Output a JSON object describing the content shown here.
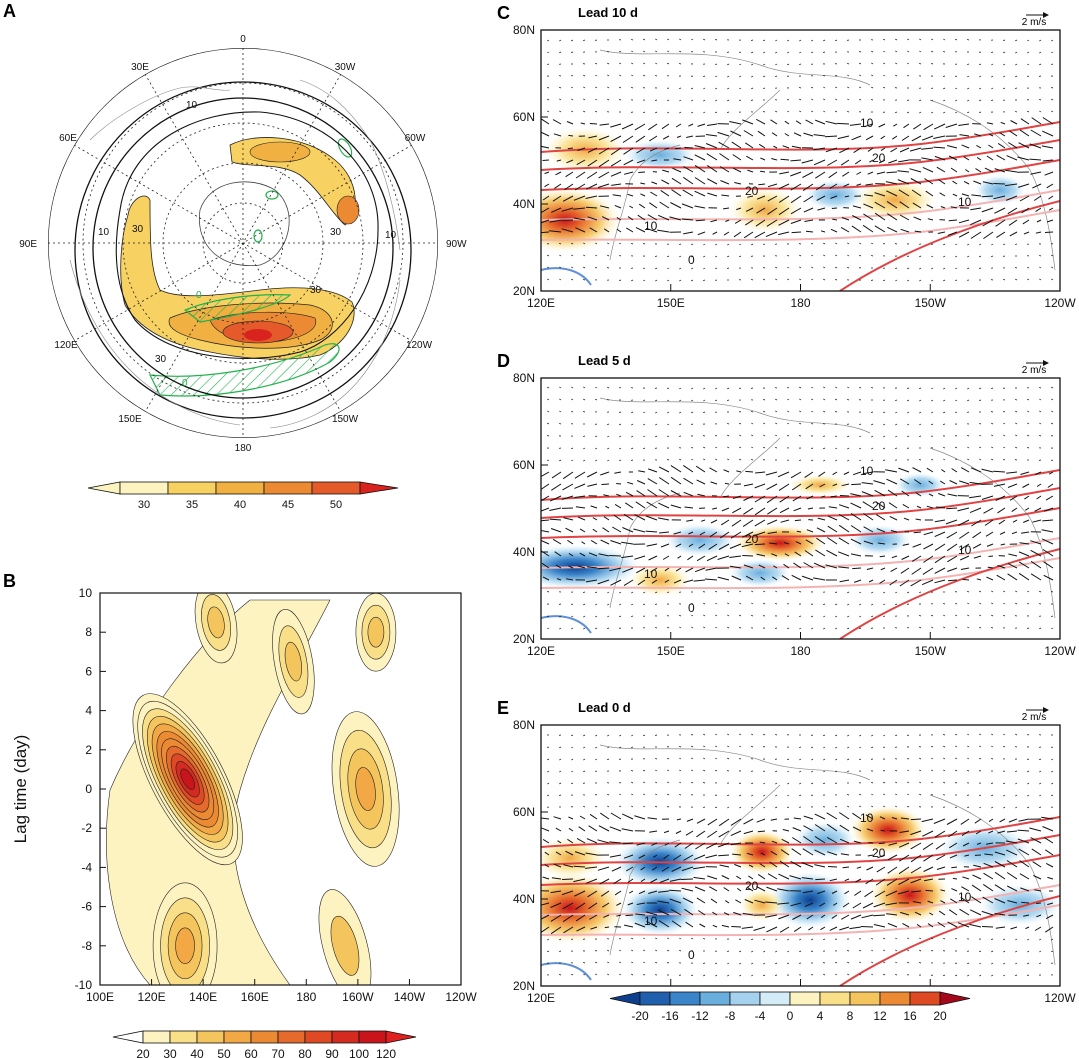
{
  "panels": {
    "A": {
      "label": "A"
    },
    "B": {
      "label": "B"
    },
    "C": {
      "label": "C",
      "title": "Lead 10 d",
      "ref_vector": "2 m/s"
    },
    "D": {
      "label": "D",
      "title": "Lead 5 d",
      "ref_vector": "2 m/s"
    },
    "E": {
      "label": "E",
      "title": "Lead 0 d",
      "ref_vector": "2 m/s"
    }
  },
  "chart_data": [
    {
      "id": "A",
      "type": "heatmap",
      "projection": "north-polar-stereographic",
      "longitude_labels": [
        "0",
        "30W",
        "60W",
        "90W",
        "120W",
        "150W",
        "180",
        "150E",
        "120E",
        "90E",
        "60E",
        "30E"
      ],
      "contour_labels": [
        "10",
        "30",
        "30",
        "30",
        "30",
        "10",
        "10",
        "0",
        "0"
      ],
      "shading_levels": [
        "30",
        "35",
        "40",
        "45",
        "50"
      ],
      "shading_colors": [
        "#fdf3c0",
        "#f7d161",
        "#f1b042",
        "#ec8a34",
        "#e55a2b",
        "#d9231f"
      ],
      "hatched_color": "#22b14c"
    },
    {
      "id": "B",
      "type": "heatmap",
      "xlabel": "",
      "ylabel": "Lag time (day)",
      "x_ticks": [
        "100E",
        "120E",
        "140E",
        "160E",
        "180",
        "160W",
        "140W",
        "120W"
      ],
      "y_ticks": [
        "10",
        "8",
        "6",
        "4",
        "2",
        "0",
        "-2",
        "-4",
        "-6",
        "-8",
        "-10"
      ],
      "ylim": [
        -10,
        10
      ],
      "peaks": [
        {
          "lon": 134,
          "lag": 0.5,
          "max": 120
        },
        {
          "lon": 133,
          "lag": -8,
          "max": 50
        },
        {
          "lon": 203,
          "lag": 0,
          "max": 50
        },
        {
          "lon": 175,
          "lag": 6.5,
          "max": 40
        },
        {
          "lon": 207,
          "lag": 8,
          "max": 40
        },
        {
          "lon": 145,
          "lag": 8.5,
          "max": 40
        },
        {
          "lon": 195,
          "lag": -8,
          "max": 30
        }
      ],
      "colorbar_levels": [
        "20",
        "30",
        "40",
        "50",
        "60",
        "70",
        "80",
        "90",
        "100",
        "120"
      ]
    },
    {
      "id": "C",
      "type": "heatmap",
      "title": "Lead 10 d",
      "x_ticks": [
        "120E",
        "150E",
        "180",
        "150W",
        "120W"
      ],
      "y_ticks": [
        "80N",
        "60N",
        "40N",
        "20N"
      ],
      "contour_labels": [
        "10",
        "20",
        "20",
        "10",
        "10",
        "0"
      ]
    },
    {
      "id": "D",
      "type": "heatmap",
      "title": "Lead 5 d",
      "x_ticks": [
        "120E",
        "150E",
        "180",
        "150W",
        "120W"
      ],
      "y_ticks": [
        "80N",
        "60N",
        "40N",
        "20N"
      ],
      "contour_labels": [
        "10",
        "20",
        "20",
        "10",
        "10",
        "0"
      ]
    },
    {
      "id": "E",
      "type": "heatmap",
      "title": "Lead 0 d",
      "x_ticks": [
        "120E",
        "150E",
        "180",
        "150W",
        "120W"
      ],
      "y_ticks": [
        "80N",
        "60N",
        "40N",
        "20N"
      ],
      "contour_labels": [
        "10",
        "20",
        "20",
        "10",
        "10",
        "0"
      ],
      "colorbar_levels": [
        "-20",
        "-16",
        "-12",
        "-8",
        "-4",
        "0",
        "4",
        "8",
        "12",
        "16",
        "20"
      ]
    }
  ],
  "colors": {
    "warm": [
      "#fdf3c0",
      "#f9df88",
      "#f5c55d",
      "#f1a845",
      "#ec8a34",
      "#e66a2c",
      "#df4a25",
      "#d52a1f",
      "#c9141c"
    ],
    "cool": [
      "#0d3f8f",
      "#1f5fae",
      "#3a84c9",
      "#6aaedd",
      "#a4d2ee",
      "#d4ecf8"
    ],
    "contour_pos": "#e04343",
    "contour_weak": "#f4b3b3",
    "contour_neg": "#5f8fd6"
  }
}
